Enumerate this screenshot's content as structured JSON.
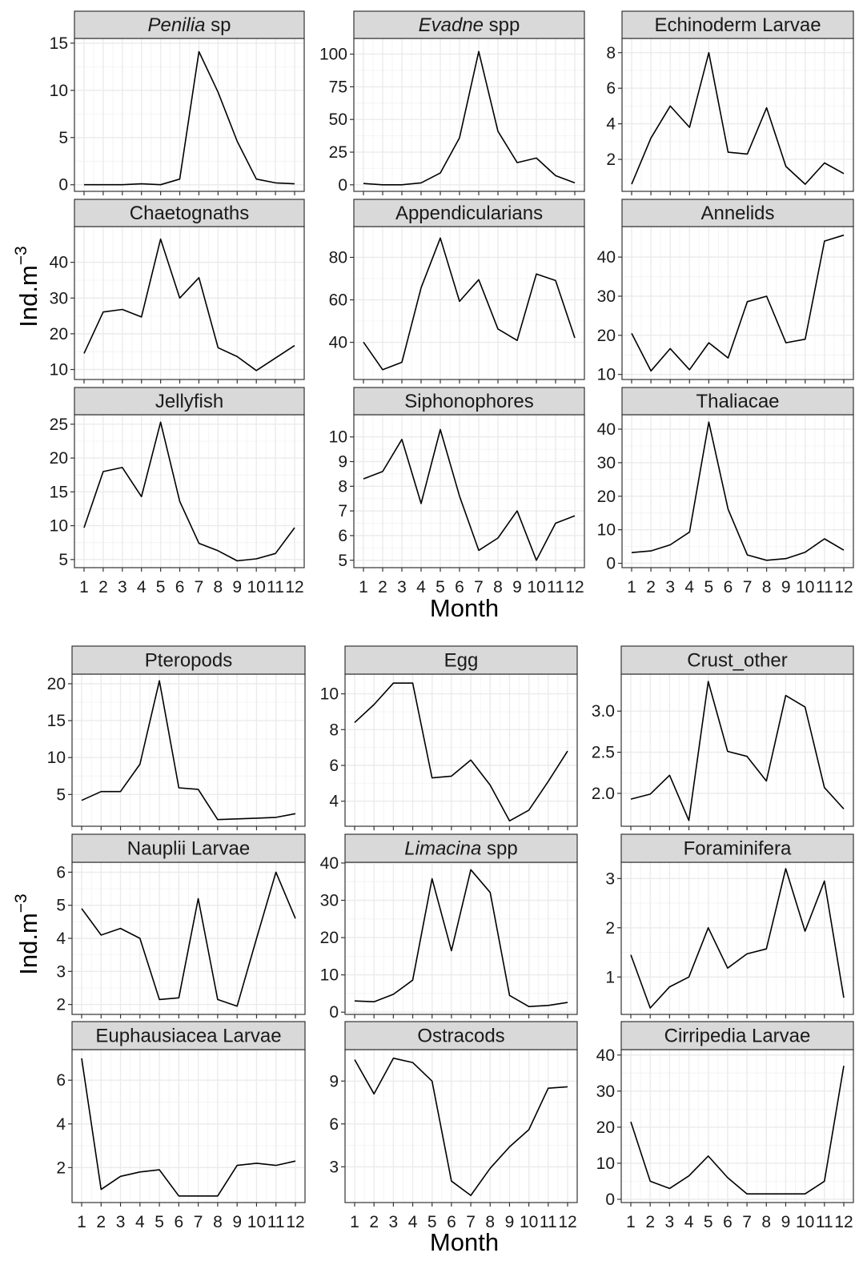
{
  "figure": {
    "y_axis_title": "Ind.m",
    "y_axis_title_sup": "−3",
    "x_axis_title": "Month"
  },
  "colors": {
    "strip_fill": "#d9d9d9",
    "strip_border": "#333333",
    "panel_border": "#333333",
    "grid_major": "#ebebeb",
    "grid_minor": "#f4f4f4",
    "line": "#000000"
  },
  "chart_data": [
    {
      "group": "top",
      "type": "line",
      "x": [
        1,
        2,
        3,
        4,
        5,
        6,
        7,
        8,
        9,
        10,
        11,
        12
      ],
      "x_tick_labels": [
        "1",
        "2",
        "3",
        "4",
        "5",
        "6",
        "7",
        "8",
        "9",
        "10",
        "11",
        "12"
      ],
      "xlabel": "Month",
      "ylabel": "Ind.m−3",
      "facets": [
        {
          "title": [
            {
              "text": "Penilia",
              "italic": true
            },
            {
              "text": " sp",
              "italic": false
            }
          ],
          "values": [
            0,
            0,
            0,
            0.1,
            0,
            0.6,
            14.1,
            9.8,
            4.6,
            0.6,
            0.2,
            0.1
          ],
          "yticks": [
            0,
            5,
            10,
            15
          ],
          "ylim": [
            -0.7,
            15.5
          ]
        },
        {
          "title": [
            {
              "text": "Evadne",
              "italic": true
            },
            {
              "text": " spp",
              "italic": false
            }
          ],
          "values": [
            1,
            0,
            0,
            1.5,
            9,
            36,
            102,
            41,
            17,
            20.5,
            7,
            1.5
          ],
          "yticks": [
            0,
            25,
            50,
            75,
            100
          ],
          "ylim": [
            -5,
            112
          ]
        },
        {
          "title": [
            {
              "text": "Echinoderm Larvae",
              "italic": false
            }
          ],
          "values": [
            0.6,
            3.2,
            5,
            3.8,
            8,
            2.4,
            2.3,
            4.9,
            1.6,
            0.6,
            1.8,
            1.2
          ],
          "yticks": [
            2,
            4,
            6,
            8
          ],
          "ylim": [
            0.2,
            8.8
          ]
        },
        {
          "title": [
            {
              "text": "Chaetognaths",
              "italic": false
            }
          ],
          "values": [
            14.5,
            26.1,
            26.8,
            24.7,
            46.5,
            30,
            35.7,
            16.1,
            13.6,
            9.7,
            13.2,
            16.7
          ],
          "yticks": [
            10,
            20,
            30,
            40
          ],
          "ylim": [
            7.2,
            50
          ]
        },
        {
          "title": [
            {
              "text": "Appendicularians",
              "italic": false
            }
          ],
          "values": [
            40.1,
            27.1,
            30.6,
            65.7,
            89.1,
            59.3,
            69.5,
            46.3,
            40.9,
            72.2,
            69.1,
            42.1
          ],
          "yticks": [
            40,
            60,
            80
          ],
          "ylim": [
            22.5,
            94.5
          ]
        },
        {
          "title": [
            {
              "text": "Annelids",
              "italic": false
            }
          ],
          "values": [
            20.5,
            10.9,
            16.6,
            11.2,
            18.1,
            14.2,
            28.6,
            30,
            18.1,
            19,
            44.1,
            45.6
          ],
          "yticks": [
            10,
            20,
            30,
            40
          ],
          "ylim": [
            8.7,
            47.8
          ]
        },
        {
          "title": [
            {
              "text": "Jellyfish",
              "italic": false
            }
          ],
          "values": [
            9.7,
            18,
            18.6,
            14.3,
            25.3,
            13.6,
            7.4,
            6.3,
            4.8,
            5.1,
            5.9,
            9.7
          ],
          "yticks": [
            5,
            10,
            15,
            20,
            25
          ],
          "ylim": [
            3.8,
            26.4
          ]
        },
        {
          "title": [
            {
              "text": "Siphonophores",
              "italic": false
            }
          ],
          "values": [
            8.3,
            8.6,
            9.9,
            7.3,
            10.3,
            7.6,
            5.4,
            5.9,
            7,
            5,
            6.5,
            6.8
          ],
          "yticks": [
            5,
            6,
            7,
            8,
            9,
            10
          ],
          "ylim": [
            4.7,
            10.9
          ]
        },
        {
          "title": [
            {
              "text": "Thaliacae",
              "italic": false
            }
          ],
          "values": [
            3.2,
            3.7,
            5.5,
            9.3,
            42.1,
            16.1,
            2.5,
            0.9,
            1.4,
            3.3,
            7.3,
            3.9
          ],
          "yticks": [
            0,
            10,
            20,
            30,
            40
          ],
          "ylim": [
            -1.3,
            44.3
          ]
        }
      ]
    },
    {
      "group": "bottom",
      "type": "line",
      "x": [
        1,
        2,
        3,
        4,
        5,
        6,
        7,
        8,
        9,
        10,
        11,
        12
      ],
      "x_tick_labels": [
        "1",
        "2",
        "3",
        "4",
        "5",
        "6",
        "7",
        "8",
        "9",
        "10",
        "11",
        "12"
      ],
      "xlabel": "Month",
      "ylabel": "Ind.m−3",
      "facets": [
        {
          "title": [
            {
              "text": "Pteropods",
              "italic": false
            }
          ],
          "values": [
            4.2,
            5.4,
            5.4,
            9.1,
            20.4,
            5.9,
            5.7,
            1.6,
            1.7,
            1.8,
            1.9,
            2.4
          ],
          "yticks": [
            5,
            10,
            15,
            20
          ],
          "ylim": [
            0.7,
            21.3
          ]
        },
        {
          "title": [
            {
              "text": "Egg",
              "italic": false
            }
          ],
          "values": [
            8.4,
            9.4,
            10.6,
            10.6,
            5.3,
            5.4,
            6.3,
            4.9,
            2.9,
            3.5,
            5.1,
            6.8
          ],
          "yticks": [
            4,
            6,
            8,
            10
          ],
          "ylim": [
            2.6,
            11.1
          ]
        },
        {
          "title": [
            {
              "text": "Crust_other",
              "italic": false
            }
          ],
          "values": [
            1.93,
            1.99,
            2.22,
            1.67,
            3.36,
            2.51,
            2.45,
            2.15,
            3.19,
            3.05,
            2.07,
            1.81
          ],
          "yticks": [
            2.0,
            2.5,
            3.0
          ],
          "ylim": [
            1.6,
            3.45
          ]
        },
        {
          "title": [
            {
              "text": "Nauplii Larvae",
              "italic": false
            }
          ],
          "values": [
            4.9,
            4.1,
            4.3,
            4.0,
            2.15,
            2.2,
            5.2,
            2.15,
            1.95,
            4.0,
            6.0,
            4.6
          ],
          "yticks": [
            2,
            3,
            4,
            5,
            6
          ],
          "ylim": [
            1.7,
            6.3
          ]
        },
        {
          "title": [
            {
              "text": "Limacina",
              "italic": true
            },
            {
              "text": " spp",
              "italic": false
            }
          ],
          "values": [
            3,
            2.8,
            4.8,
            8.6,
            35.8,
            16.5,
            38.2,
            32.1,
            4.5,
            1.5,
            1.8,
            2.6
          ],
          "yticks": [
            0,
            10,
            20,
            30,
            40
          ],
          "ylim": [
            -0.6,
            40.2
          ]
        },
        {
          "title": [
            {
              "text": "Foraminifera",
              "italic": false
            }
          ],
          "values": [
            1.45,
            0.37,
            0.8,
            1.0,
            2.0,
            1.18,
            1.47,
            1.57,
            3.2,
            1.93,
            2.95,
            0.58
          ],
          "yticks": [
            1,
            2,
            3
          ],
          "ylim": [
            0.24,
            3.33
          ]
        },
        {
          "title": [
            {
              "text": "Euphausiacea Larvae",
              "italic": false
            }
          ],
          "values": [
            7,
            1,
            1.6,
            1.8,
            1.9,
            0.7,
            0.7,
            0.7,
            2.1,
            2.2,
            2.1,
            2.3
          ],
          "yticks": [
            2,
            4,
            6
          ],
          "ylim": [
            0.4,
            7.4
          ]
        },
        {
          "title": [
            {
              "text": "Ostracods",
              "italic": false
            }
          ],
          "values": [
            10.5,
            8.1,
            10.6,
            10.3,
            9.0,
            2.0,
            1.0,
            2.9,
            4.4,
            5.6,
            8.5,
            8.6
          ],
          "yticks": [
            3,
            6,
            9
          ],
          "ylim": [
            0.5,
            11.2
          ]
        },
        {
          "title": [
            {
              "text": "Cirripedia Larvae",
              "italic": false
            }
          ],
          "values": [
            21.5,
            5,
            3,
            6.5,
            12,
            6,
            1.5,
            1.5,
            1.5,
            1.5,
            5,
            37
          ],
          "yticks": [
            0,
            10,
            20,
            30,
            40
          ],
          "ylim": [
            -0.9,
            41.5
          ]
        }
      ]
    }
  ]
}
